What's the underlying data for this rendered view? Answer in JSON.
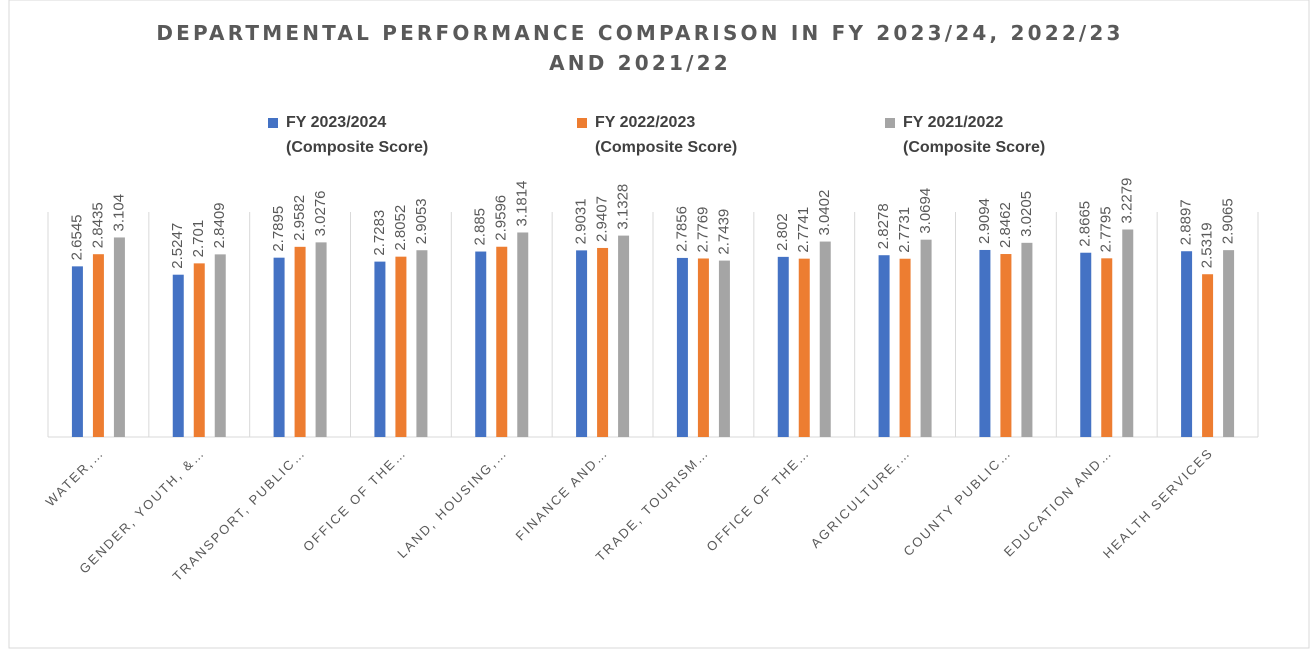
{
  "chart_data": {
    "type": "bar",
    "title": "DEPARTMENTAL PERFORMANCE COMPARISON IN FY 2023/24, 2022/23 AND 2021/22",
    "categories": [
      "WATER,…",
      "GENDER, YOUTH, &…",
      "TRANSPORT, PUBLIC…",
      "OFFICE OF THE…",
      "LAND, HOUSING,…",
      "FINANCE AND…",
      "TRADE, TOURISM…",
      "OFFICE OF THE…",
      "AGRICULTURE,…",
      "COUNTY PUBLIC…",
      "EDUCATION AND…",
      "HEALTH SERVICES"
    ],
    "series": [
      {
        "name": "FY 2023/2024 (Composite Score)",
        "color": "#4472c4",
        "values": [
          2.6545,
          2.5247,
          2.7895,
          2.7283,
          2.885,
          2.9031,
          2.7856,
          2.802,
          2.8278,
          2.9094,
          2.8665,
          2.8897
        ]
      },
      {
        "name": "FY 2022/2023 (Composite Score)",
        "color": "#ed7d31",
        "values": [
          2.8435,
          2.701,
          2.9582,
          2.8052,
          2.9596,
          2.9407,
          2.7769,
          2.7741,
          2.7731,
          2.8462,
          2.7795,
          2.5319
        ]
      },
      {
        "name": "FY 2021/2022 (Composite Score)",
        "color": "#a5a5a5",
        "values": [
          3.104,
          2.8409,
          3.0276,
          2.9053,
          3.1814,
          3.1328,
          2.7439,
          3.0402,
          3.0694,
          3.0205,
          3.2279,
          2.9065
        ]
      }
    ],
    "ylim": [
      0,
      3.5
    ],
    "legend": "top",
    "data_labels": true
  }
}
